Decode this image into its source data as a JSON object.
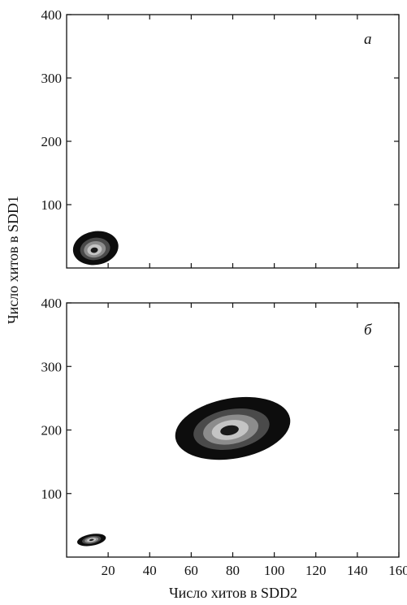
{
  "chart_data": [
    {
      "type": "heatmap",
      "panel_label": "а",
      "xlim": [
        0,
        160
      ],
      "ylim": [
        0,
        400
      ],
      "x_ticks": [
        20,
        40,
        60,
        80,
        100,
        120,
        140,
        160
      ],
      "y_ticks": [
        100,
        200,
        300,
        400
      ],
      "x_tick_labels": [],
      "y_tick_labels": [
        "100",
        "200",
        "300",
        "400"
      ],
      "clusters": [
        {
          "center": [
            13,
            28
          ],
          "x_extent": [
            3,
            25
          ],
          "y_extent": [
            5,
            58
          ]
        }
      ]
    },
    {
      "type": "heatmap",
      "panel_label": "б",
      "xlim": [
        0,
        160
      ],
      "ylim": [
        0,
        400
      ],
      "x_ticks": [
        20,
        40,
        60,
        80,
        100,
        120,
        140,
        160
      ],
      "y_ticks": [
        100,
        200,
        300,
        400
      ],
      "x_tick_labels": [
        "20",
        "40",
        "60",
        "80",
        "100",
        "120",
        "140",
        "160"
      ],
      "y_tick_labels": [
        "100",
        "200",
        "300",
        "400"
      ],
      "clusters": [
        {
          "center": [
            78,
            200
          ],
          "x_extent": [
            52,
            108
          ],
          "y_extent": [
            155,
            250
          ]
        },
        {
          "center": [
            12,
            27
          ],
          "x_extent": [
            5,
            19
          ],
          "y_extent": [
            18,
            36
          ]
        }
      ]
    }
  ],
  "shared_axes": {
    "xlabel": "Число хитов в SDD2",
    "ylabel": "Число хитов в SDD1"
  },
  "colors": {
    "outer": "#0d0d0d",
    "ring2": "#4a4a4a",
    "ring3": "#8c8c8c",
    "ring4": "#c4c4c4",
    "core": "#1a1a1a",
    "axis": "#111111"
  }
}
